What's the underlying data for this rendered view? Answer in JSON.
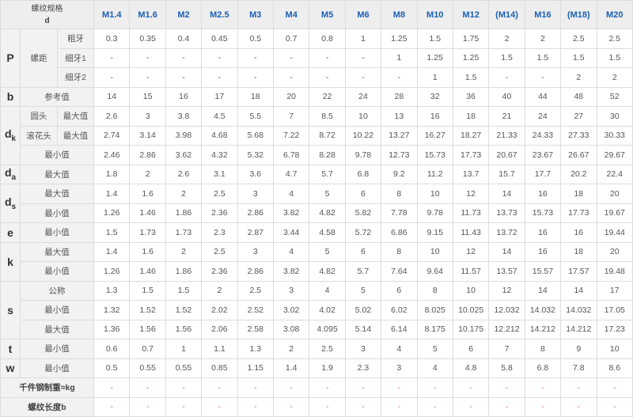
{
  "header": {
    "corner_line1": "螺纹规格",
    "corner_line2": "d",
    "sizes": [
      "M1.4",
      "M1.6",
      "M2",
      "M2.5",
      "M3",
      "M4",
      "M5",
      "M6",
      "M8",
      "M10",
      "M12",
      "(M14)",
      "M16",
      "(M18)",
      "M20"
    ]
  },
  "groups": [
    {
      "symbol": "P",
      "sub": "",
      "group_label": "螺距",
      "rows": [
        {
          "labels": [
            "粗牙"
          ],
          "values": [
            "0.3",
            "0.35",
            "0.4",
            "0.45",
            "0.5",
            "0.7",
            "0.8",
            "1",
            "1.25",
            "1.5",
            "1.75",
            "2",
            "2",
            "2.5",
            "2.5"
          ]
        },
        {
          "labels": [
            "细牙1"
          ],
          "values": [
            "-",
            "-",
            "-",
            "-",
            "-",
            "-",
            "-",
            "-",
            "1",
            "1.25",
            "1.25",
            "1.5",
            "1.5",
            "1.5",
            "1.5"
          ]
        },
        {
          "labels": [
            "细牙2"
          ],
          "values": [
            "-",
            "-",
            "-",
            "-",
            "-",
            "-",
            "-",
            "-",
            "-",
            "1",
            "1.5",
            "-",
            "-",
            "2",
            "2"
          ]
        }
      ]
    },
    {
      "symbol": "b",
      "sub": "",
      "rows": [
        {
          "labels": [
            "参考值"
          ],
          "values": [
            "14",
            "15",
            "16",
            "17",
            "18",
            "20",
            "22",
            "24",
            "28",
            "32",
            "36",
            "40",
            "44",
            "48",
            "52"
          ]
        }
      ]
    },
    {
      "symbol": "d",
      "sub": "k",
      "rows": [
        {
          "labels": [
            "圆头",
            "最大值"
          ],
          "values": [
            "2.6",
            "3",
            "3.8",
            "4.5",
            "5.5",
            "7",
            "8.5",
            "10",
            "13",
            "16",
            "18",
            "21",
            "24",
            "27",
            "30"
          ]
        },
        {
          "labels": [
            "滚花头",
            "最大值"
          ],
          "values": [
            "2.74",
            "3.14",
            "3.98",
            "4.68",
            "5.68",
            "7.22",
            "8.72",
            "10.22",
            "13.27",
            "16.27",
            "18.27",
            "21.33",
            "24.33",
            "27.33",
            "30.33"
          ]
        },
        {
          "labels": [
            "最小值"
          ],
          "values": [
            "2.46",
            "2.86",
            "3.62",
            "4.32",
            "5.32",
            "6.78",
            "8.28",
            "9.78",
            "12.73",
            "15.73",
            "17.73",
            "20.67",
            "23.67",
            "26.67",
            "29.67"
          ]
        }
      ]
    },
    {
      "symbol": "d",
      "sub": "a",
      "rows": [
        {
          "labels": [
            "最大值"
          ],
          "values": [
            "1.8",
            "2",
            "2.6",
            "3.1",
            "3.6",
            "4.7",
            "5.7",
            "6.8",
            "9.2",
            "11.2",
            "13.7",
            "15.7",
            "17.7",
            "20.2",
            "22.4"
          ]
        }
      ]
    },
    {
      "symbol": "d",
      "sub": "s",
      "rows": [
        {
          "labels": [
            "最大值"
          ],
          "values": [
            "1.4",
            "1.6",
            "2",
            "2.5",
            "3",
            "4",
            "5",
            "6",
            "8",
            "10",
            "12",
            "14",
            "16",
            "18",
            "20"
          ]
        },
        {
          "labels": [
            "最小值"
          ],
          "values": [
            "1.26",
            "1.46",
            "1.86",
            "2.36",
            "2.86",
            "3.82",
            "4.82",
            "5.82",
            "7.78",
            "9.78",
            "11.73",
            "13.73",
            "15.73",
            "17.73",
            "19.67"
          ]
        }
      ]
    },
    {
      "symbol": "e",
      "sub": "",
      "rows": [
        {
          "labels": [
            "最小值"
          ],
          "values": [
            "1.5",
            "1.73",
            "1.73",
            "2.3",
            "2.87",
            "3.44",
            "4.58",
            "5.72",
            "6.86",
            "9.15",
            "11.43",
            "13.72",
            "16",
            "16",
            "19.44"
          ]
        }
      ]
    },
    {
      "symbol": "k",
      "sub": "",
      "rows": [
        {
          "labels": [
            "最大值"
          ],
          "values": [
            "1.4",
            "1.6",
            "2",
            "2.5",
            "3",
            "4",
            "5",
            "6",
            "8",
            "10",
            "12",
            "14",
            "16",
            "18",
            "20"
          ]
        },
        {
          "labels": [
            "最小值"
          ],
          "values": [
            "1.26",
            "1.46",
            "1.86",
            "2.36",
            "2.86",
            "3.82",
            "4.82",
            "5.7",
            "7.64",
            "9.64",
            "11.57",
            "13.57",
            "15.57",
            "17.57",
            "19.48"
          ]
        }
      ]
    },
    {
      "symbol": "s",
      "sub": "",
      "rows": [
        {
          "labels": [
            "公称"
          ],
          "values": [
            "1.3",
            "1.5",
            "1.5",
            "2",
            "2.5",
            "3",
            "4",
            "5",
            "6",
            "8",
            "10",
            "12",
            "14",
            "14",
            "17"
          ]
        },
        {
          "labels": [
            "最小值"
          ],
          "values": [
            "1.32",
            "1.52",
            "1.52",
            "2.02",
            "2.52",
            "3.02",
            "4.02",
            "5.02",
            "6.02",
            "8.025",
            "10.025",
            "12.032",
            "14.032",
            "14.032",
            "17.05"
          ]
        },
        {
          "labels": [
            "最大值"
          ],
          "values": [
            "1.36",
            "1.56",
            "1.56",
            "2.06",
            "2.58",
            "3.08",
            "4.095",
            "5.14",
            "6.14",
            "8.175",
            "10.175",
            "12.212",
            "14.212",
            "14.212",
            "17.23"
          ]
        }
      ]
    },
    {
      "symbol": "t",
      "sub": "",
      "rows": [
        {
          "labels": [
            "最小值"
          ],
          "values": [
            "0.6",
            "0.7",
            "1",
            "1.1",
            "1.3",
            "2",
            "2.5",
            "3",
            "4",
            "5",
            "6",
            "7",
            "8",
            "9",
            "10"
          ]
        }
      ]
    },
    {
      "symbol": "w",
      "sub": "",
      "rows": [
        {
          "labels": [
            "最小值"
          ],
          "values": [
            "0.5",
            "0.55",
            "0.55",
            "0.85",
            "1.15",
            "1.4",
            "1.9",
            "2.3",
            "3",
            "4",
            "4.8",
            "5.8",
            "6.8",
            "7.8",
            "8.6"
          ]
        }
      ]
    },
    {
      "symbol": "",
      "sub": "",
      "wide": true,
      "rows": [
        {
          "labels": [
            "千件钢制重≈kg"
          ],
          "values": [
            "-",
            "-",
            "-",
            "-",
            "-",
            "-",
            "-",
            "-",
            "-",
            "-",
            "-",
            "-",
            "-",
            "-",
            "-"
          ]
        }
      ]
    },
    {
      "symbol": "",
      "sub": "",
      "wide": true,
      "rows": [
        {
          "labels": [
            "螺纹长度b"
          ],
          "values": [
            "-",
            "-",
            "-",
            "-",
            "-",
            "-",
            "-",
            "-",
            "-",
            "-",
            "-",
            "-",
            "-",
            "-",
            "-"
          ]
        }
      ]
    }
  ],
  "colors": {
    "header_text": "#1a5fb4",
    "label_bg": "#f2f2f2",
    "missing_value": "#d0607a"
  }
}
